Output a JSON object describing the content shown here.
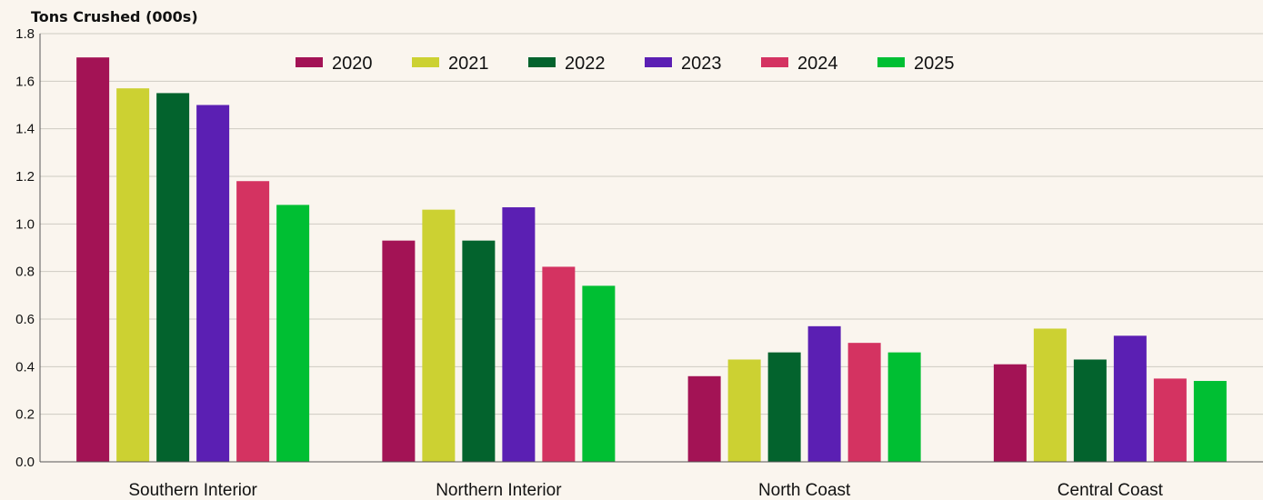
{
  "chart_data": {
    "type": "bar",
    "title": "",
    "ylabel": "Tons Crushed (000s)",
    "xlabel": "",
    "ylim": [
      0,
      1.8
    ],
    "yticks": [
      "0.0",
      "0.2",
      "0.4",
      "0.6",
      "0.8",
      "1.0",
      "1.2",
      "1.4",
      "1.6",
      "1.8"
    ],
    "grid": true,
    "legend_position": "top-center",
    "categories": [
      "Southern Interior",
      "Northern Interior",
      "North Coast",
      "Central Coast"
    ],
    "series": [
      {
        "name": "2020",
        "color": "#a31355",
        "values": [
          1.7,
          0.93,
          0.36,
          0.41
        ]
      },
      {
        "name": "2021",
        "color": "#ccd132",
        "values": [
          1.57,
          1.06,
          0.43,
          0.56
        ]
      },
      {
        "name": "2022",
        "color": "#03632d",
        "values": [
          1.55,
          0.93,
          0.46,
          0.43
        ]
      },
      {
        "name": "2023",
        "color": "#5b1fb3",
        "values": [
          1.5,
          1.07,
          0.57,
          0.53
        ]
      },
      {
        "name": "2024",
        "color": "#d43361",
        "values": [
          1.18,
          0.82,
          0.5,
          0.35
        ]
      },
      {
        "name": "2025",
        "color": "#00bf33",
        "values": [
          1.08,
          0.74,
          0.46,
          0.34
        ]
      }
    ]
  }
}
